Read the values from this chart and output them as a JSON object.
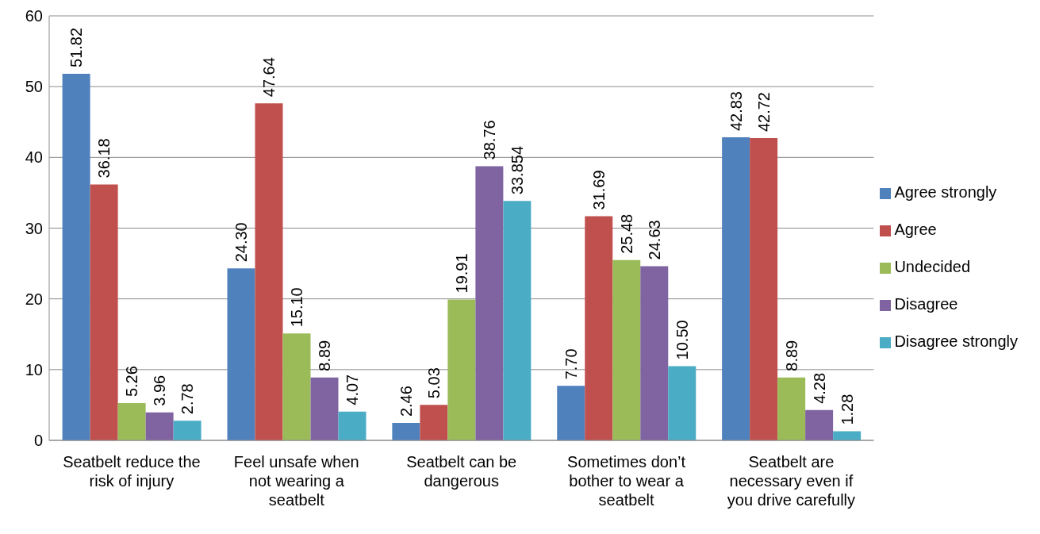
{
  "chart_data": {
    "type": "bar",
    "categories": [
      "Seatbelt reduce the risk of injury",
      "Feel unsafe when not wearing a seatbelt",
      "Seatbelt can be dangerous",
      "Sometimes don’t bother to wear a seatbelt",
      "Seatbelt are necessary even if you drive carefully"
    ],
    "series": [
      {
        "name": "Agree strongly",
        "color": "#4f81bd",
        "values": [
          51.82,
          24.3,
          2.46,
          7.7,
          42.83
        ],
        "value_labels": [
          "51.82",
          "24.30",
          "2.46",
          "7.70",
          "42.83"
        ]
      },
      {
        "name": "Agree",
        "color": "#c0504d",
        "values": [
          36.18,
          47.64,
          5.03,
          31.69,
          42.72
        ],
        "value_labels": [
          "36.18",
          "47.64",
          "5.03",
          "31.69",
          "42.72"
        ]
      },
      {
        "name": "Undecided",
        "color": "#9bbb59",
        "values": [
          5.26,
          15.1,
          19.91,
          25.48,
          8.89
        ],
        "value_labels": [
          "5.26",
          "15.10",
          "19.91",
          "25.48",
          "8.89"
        ]
      },
      {
        "name": "Disagree",
        "color": "#8064a2",
        "values": [
          3.96,
          8.89,
          38.76,
          24.63,
          4.28
        ],
        "value_labels": [
          "3.96",
          "8.89",
          "38.76",
          "24.63",
          "4.28"
        ]
      },
      {
        "name": "Disagree strongly",
        "color": "#4bacc6",
        "values": [
          2.78,
          4.07,
          33.854,
          10.5,
          1.28
        ],
        "value_labels": [
          "2.78",
          "4.07",
          "33.854",
          "10.50",
          "1.28"
        ]
      }
    ],
    "ylim": [
      0,
      60
    ],
    "yticks": [
      0,
      10,
      20,
      30,
      40,
      50,
      60
    ],
    "grid": "y",
    "legend": "right"
  }
}
